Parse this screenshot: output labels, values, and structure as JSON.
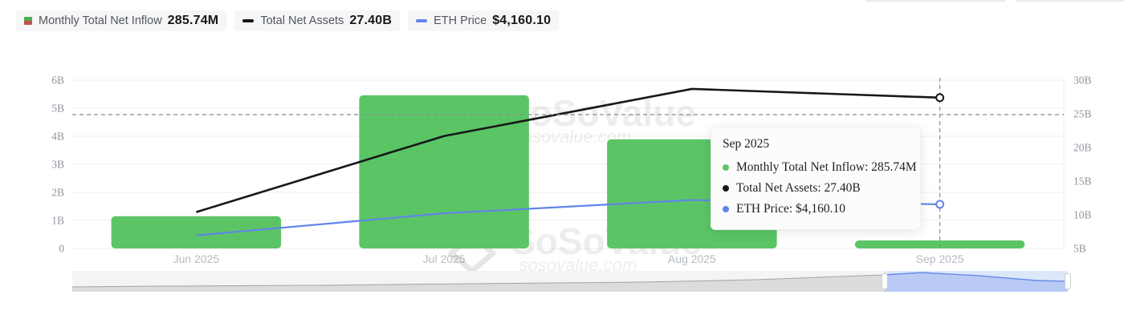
{
  "colors": {
    "bar_green": "#5bc566",
    "net_assets_black": "#17181a",
    "eth_blue": "#6185e8",
    "legend_icon_green": "#4faa54",
    "legend_icon_red": "#c0504d",
    "grid": "#efefef",
    "axis_text": "#8f959c",
    "month_text": "#b5bac0",
    "crosshair": "#8c8c8c",
    "brush_bg": "#f4f4f4",
    "brush_fill": "#dcdcdc",
    "brush_line": "#a3a3a3",
    "brush_sel_bg": "#dce7fa",
    "brush_sel_fill": "#b9cbf4",
    "brush_sel_line": "#6185e8",
    "watermark": "rgba(30,30,30,0.08)"
  },
  "legend": {
    "items": [
      {
        "label": "Monthly Total Net Inflow",
        "value": "285.74M",
        "swatch": "green-red-square"
      },
      {
        "label": "Total Net Assets",
        "value": "27.40B",
        "swatch": "black-dash"
      },
      {
        "label": "ETH Price",
        "value": "$4,160.10",
        "swatch": "blue-dash"
      }
    ]
  },
  "tooltip": {
    "title": "Sep 2025",
    "rows": [
      {
        "text": "Monthly Total Net Inflow: 285.74M",
        "color": "#5bc566"
      },
      {
        "text": "Total Net Assets: 27.40B",
        "color": "#17181a"
      },
      {
        "text": "ETH Price: $4,160.10",
        "color": "#6185e8"
      }
    ]
  },
  "watermark": {
    "name": "SoSoValue",
    "domain": "sosovalue.com"
  },
  "chart_data": {
    "type": "combo",
    "categories": [
      "Jun 2025",
      "Jul 2025",
      "Aug 2025",
      "Sep 2025"
    ],
    "series": [
      {
        "name": "Monthly Total Net Inflow",
        "type": "bar",
        "axis": "left",
        "unit": "B",
        "color": "#5bc566",
        "values": [
          1.15,
          5.46,
          3.89,
          0.28574
        ]
      },
      {
        "name": "Total Net Assets",
        "type": "line",
        "axis": "right",
        "unit": "B",
        "color": "#17181a",
        "values": [
          10.4,
          21.7,
          28.7,
          27.4
        ]
      },
      {
        "name": "ETH Price",
        "type": "line",
        "axis": "hidden",
        "unit": "USD",
        "color": "#6185e8",
        "values": [
          2500,
          3680,
          4390,
          4160.1
        ]
      }
    ],
    "left_axis": {
      "min": 0,
      "max": 6,
      "step": 1,
      "ticks": [
        "0",
        "1B",
        "2B",
        "3B",
        "4B",
        "5B",
        "6B"
      ]
    },
    "right_axis": {
      "min": 5,
      "max": 30,
      "step": 5,
      "ticks": [
        "5B",
        "10B",
        "15B",
        "20B",
        "25B",
        "30B"
      ]
    },
    "hidden_axis_range": [
      1800,
      10800
    ],
    "grid": true,
    "legend_position": "top-left",
    "active_point": {
      "category": "Sep 2025",
      "index": 3
    },
    "brush": {
      "selected_range_frac": [
        0.816,
        1.0
      ],
      "profile": [
        [
          0,
          0.77
        ],
        [
          0.09,
          0.73
        ],
        [
          0.25,
          0.69
        ],
        [
          0.41,
          0.61
        ],
        [
          0.57,
          0.54
        ],
        [
          0.69,
          0.42
        ],
        [
          0.77,
          0.27
        ],
        [
          0.816,
          0.19
        ],
        [
          0.853,
          0.08
        ],
        [
          0.911,
          0.23
        ],
        [
          0.968,
          0.46
        ],
        [
          1,
          0.5
        ]
      ]
    }
  }
}
